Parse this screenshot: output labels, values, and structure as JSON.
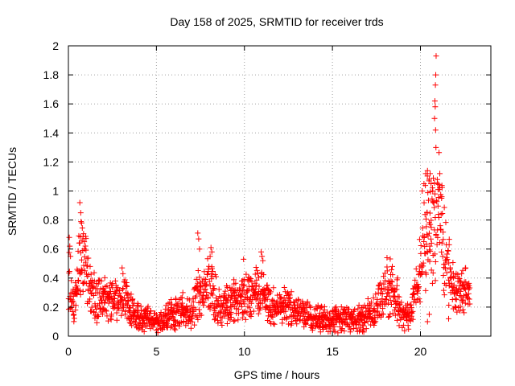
{
  "chart_data": {
    "type": "scatter",
    "title": "Day 158 of 2025, SRMTID for receiver trds",
    "xlabel": "GPS time / hours",
    "ylabel": "SRMTID / TECUs",
    "xlim": [
      0,
      24
    ],
    "ylim": [
      0,
      2
    ],
    "grid": true,
    "legend": "none",
    "marker": "+",
    "marker_color": "#ff0000",
    "x_ticks": [
      0,
      5,
      10,
      15,
      20
    ],
    "x_tick_labels": [
      "0",
      "5",
      "10",
      "15",
      "20"
    ],
    "y_ticks": [
      0,
      0.2,
      0.4,
      0.6,
      0.8,
      1,
      1.2,
      1.4,
      1.6,
      1.8,
      2
    ],
    "y_tick_labels": [
      "0",
      "0.2",
      "0.4",
      "0.6",
      "0.8",
      "1",
      "1.2",
      "1.4",
      "1.6",
      "1.8",
      "2"
    ],
    "series": [
      {
        "name": "SRMTID",
        "trend": {
          "x": [
            0,
            0.1,
            0.3,
            0.5,
            0.7,
            0.9,
            1.2,
            1.5,
            2,
            2.5,
            3,
            3.2,
            3.5,
            4,
            4.5,
            5,
            5.5,
            6,
            6.5,
            7,
            7.3,
            7.6,
            8,
            8.5,
            9,
            9.5,
            10,
            10.5,
            11,
            11.5,
            12,
            12.5,
            13,
            13.5,
            14,
            14.5,
            15,
            15.5,
            16,
            16.5,
            17,
            17.5,
            18,
            18.3,
            18.6,
            19,
            19.5,
            19.8,
            20,
            20.2,
            20.4,
            20.6,
            20.8,
            21,
            21.2,
            21.4,
            21.6,
            21.8,
            22,
            22.3,
            22.6,
            22.8
          ],
          "y": [
            0.45,
            0.3,
            0.2,
            0.35,
            0.55,
            0.5,
            0.35,
            0.25,
            0.28,
            0.25,
            0.22,
            0.3,
            0.2,
            0.12,
            0.12,
            0.1,
            0.12,
            0.15,
            0.18,
            0.15,
            0.3,
            0.25,
            0.4,
            0.2,
            0.2,
            0.25,
            0.25,
            0.3,
            0.3,
            0.2,
            0.2,
            0.2,
            0.18,
            0.15,
            0.12,
            0.12,
            0.12,
            0.12,
            0.12,
            0.12,
            0.15,
            0.2,
            0.3,
            0.35,
            0.25,
            0.15,
            0.15,
            0.35,
            0.45,
            0.6,
            0.75,
            0.8,
            0.85,
            0.9,
            0.75,
            0.55,
            0.5,
            0.35,
            0.3,
            0.3,
            0.35,
            0.35
          ]
        },
        "outliers": [
          [
            0.05,
            0.68
          ],
          [
            0.08,
            0.62
          ],
          [
            0.12,
            0.55
          ],
          [
            0.65,
            0.92
          ],
          [
            0.7,
            0.85
          ],
          [
            0.75,
            0.78
          ],
          [
            0.9,
            0.65
          ],
          [
            3.05,
            0.47
          ],
          [
            3.1,
            0.43
          ],
          [
            4.0,
            0.05
          ],
          [
            5.0,
            0.04
          ],
          [
            6.1,
            0.26
          ],
          [
            6.5,
            0.3
          ],
          [
            7.35,
            0.71
          ],
          [
            7.4,
            0.67
          ],
          [
            7.45,
            0.6
          ],
          [
            8.1,
            0.61
          ],
          [
            8.15,
            0.58
          ],
          [
            8.05,
            0.55
          ],
          [
            9.95,
            0.53
          ],
          [
            10.95,
            0.58
          ],
          [
            11.0,
            0.55
          ],
          [
            11.05,
            0.52
          ],
          [
            18.1,
            0.54
          ],
          [
            18.4,
            0.48
          ],
          [
            18.7,
            0.4
          ],
          [
            20.1,
            1.0
          ],
          [
            20.2,
            1.05
          ],
          [
            20.3,
            1.12
          ],
          [
            20.4,
            1.14
          ],
          [
            20.5,
            1.08
          ],
          [
            20.55,
            1.12
          ],
          [
            20.6,
            1.05
          ],
          [
            20.7,
            1.0
          ],
          [
            20.8,
            1.5
          ],
          [
            20.82,
            1.62
          ],
          [
            20.84,
            1.58
          ],
          [
            20.86,
            1.42
          ],
          [
            20.88,
            1.3
          ],
          [
            20.85,
            1.73
          ],
          [
            20.87,
            1.8
          ],
          [
            20.89,
            1.93
          ],
          [
            21.1,
            1.12
          ],
          [
            21.2,
            0.95
          ],
          [
            20.4,
            0.1
          ],
          [
            20.5,
            0.15
          ],
          [
            21.6,
            0.12
          ]
        ]
      }
    ]
  }
}
